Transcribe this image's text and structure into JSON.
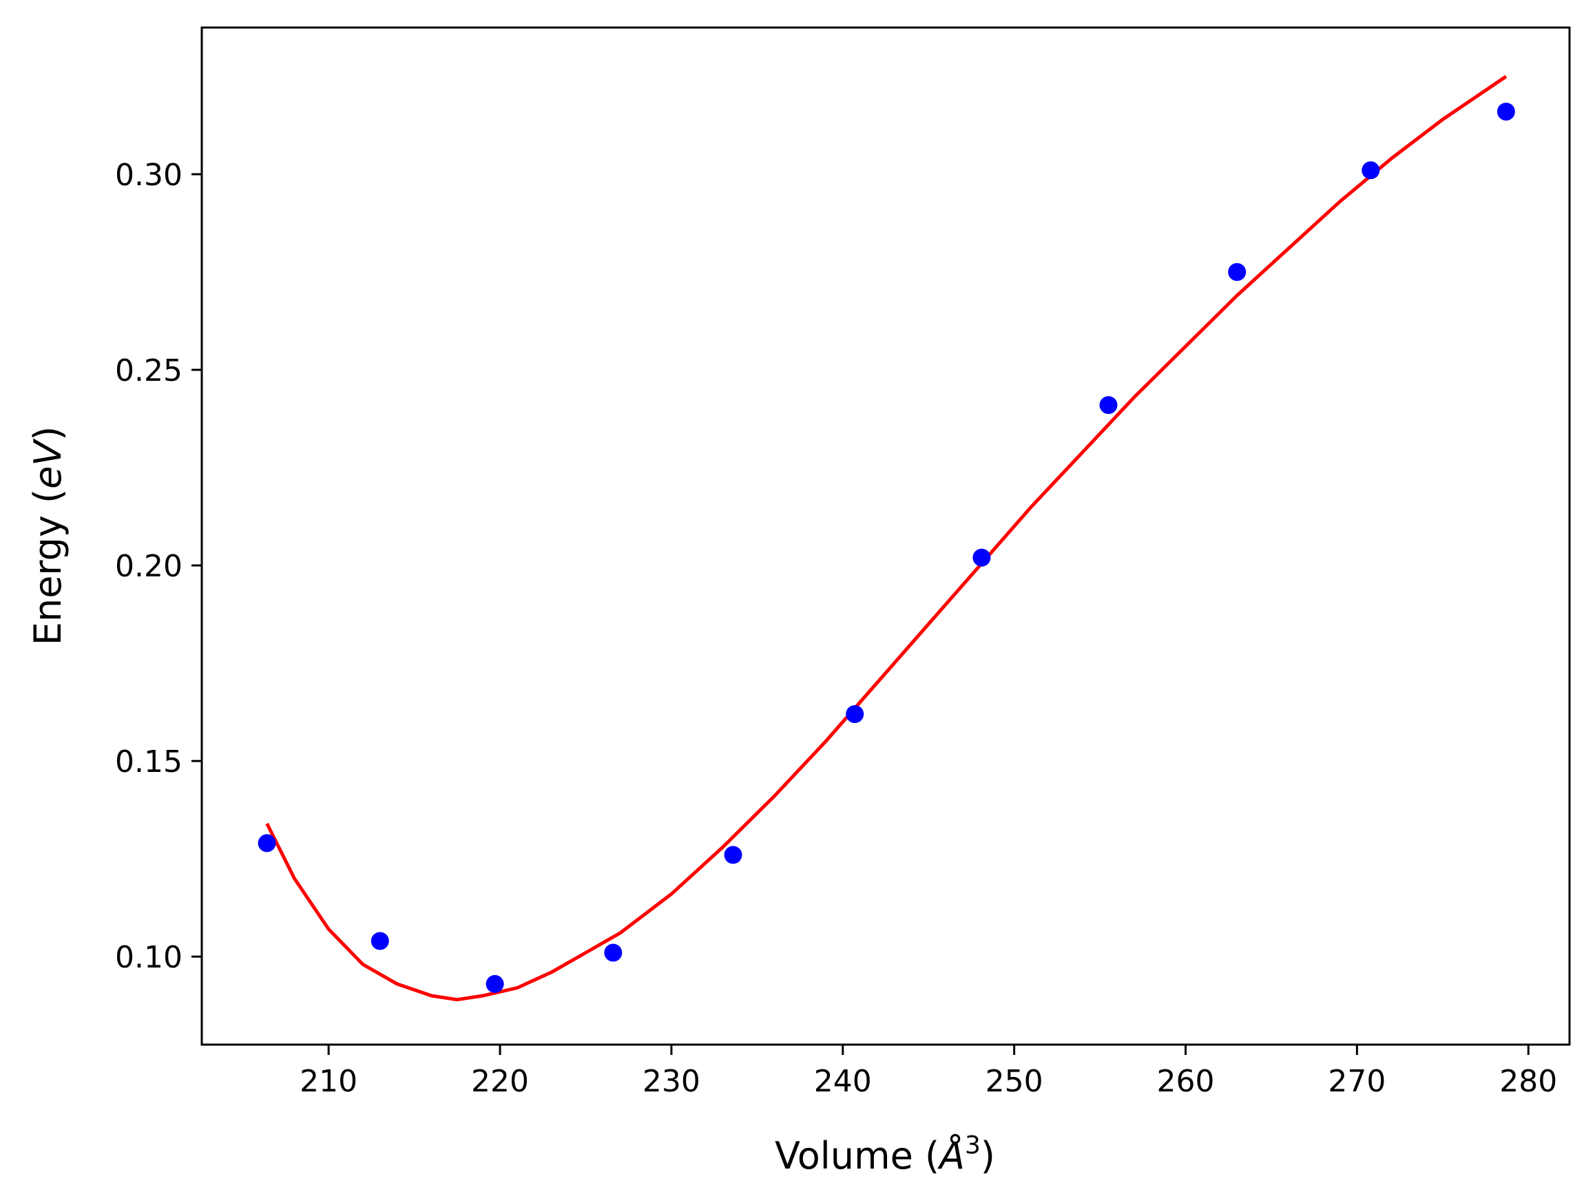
{
  "chart_data": {
    "type": "scatter",
    "xlabel": "Volume ($\\AA^3$)",
    "xlabel_parts": {
      "prefix": "Volume (",
      "symbol": "Å",
      "power": "3",
      "suffix": ")"
    },
    "ylabel": "Energy ($eV$)",
    "ylabel_parts": {
      "prefix": "Energy (",
      "unit": "eV",
      "suffix": ")"
    },
    "xlim": [
      202.6,
      282.4
    ],
    "ylim": [
      0.0775,
      0.3375
    ],
    "x_ticks": [
      210,
      220,
      230,
      240,
      250,
      260,
      270,
      280
    ],
    "x_tick_labels": [
      "210",
      "220",
      "230",
      "240",
      "250",
      "260",
      "270",
      "280"
    ],
    "y_ticks": [
      0.1,
      0.15,
      0.2,
      0.25,
      0.3
    ],
    "y_tick_labels": [
      "0.10",
      "0.15",
      "0.20",
      "0.25",
      "0.30"
    ],
    "grid": false,
    "series": [
      {
        "kind": "points",
        "color": "#0000ff",
        "x": [
          206.4,
          213.0,
          219.7,
          226.6,
          233.6,
          240.7,
          248.1,
          255.5,
          263.0,
          270.8,
          278.7
        ],
        "y": [
          0.129,
          0.104,
          0.093,
          0.101,
          0.126,
          0.162,
          0.202,
          0.241,
          0.275,
          0.301,
          0.316
        ]
      },
      {
        "kind": "fit-line",
        "color": "#ff0000",
        "x": [
          206.4,
          208.0,
          210.0,
          212.0,
          214.0,
          216.0,
          217.5,
          219.0,
          221.0,
          223.0,
          225.0,
          227.0,
          230.0,
          233.0,
          236.0,
          239.0,
          242.0,
          245.0,
          248.0,
          251.0,
          254.0,
          257.0,
          260.0,
          263.0,
          266.0,
          269.0,
          272.0,
          275.0,
          278.7
        ],
        "y": [
          0.134,
          0.12,
          0.107,
          0.098,
          0.093,
          0.09,
          0.089,
          0.09,
          0.092,
          0.096,
          0.101,
          0.106,
          0.116,
          0.128,
          0.141,
          0.155,
          0.17,
          0.185,
          0.2,
          0.215,
          0.229,
          0.243,
          0.256,
          0.269,
          0.281,
          0.293,
          0.304,
          0.314,
          0.325
        ]
      }
    ]
  }
}
